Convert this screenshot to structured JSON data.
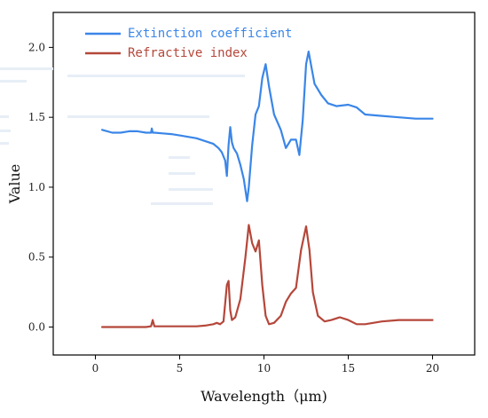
{
  "chart_data": {
    "type": "line",
    "title": "",
    "xlabel": "Wavelength（μm)",
    "ylabel": "Value",
    "xlim": [
      -2.5,
      22.5
    ],
    "ylim": [
      -0.2,
      2.25
    ],
    "xticks": [
      0,
      5,
      10,
      15,
      20
    ],
    "yticks": [
      0.0,
      0.5,
      1.0,
      1.5,
      2.0
    ],
    "xtick_labels": [
      "0",
      "5",
      "10",
      "15",
      "20"
    ],
    "ytick_labels": [
      "0.0",
      "0.5",
      "1.0",
      "1.5",
      "2.0"
    ],
    "grid": false,
    "legend_position": "top-left",
    "series": [
      {
        "name": "Extinction coefficient",
        "color": "#3a86e8",
        "x": [
          0.4,
          1.0,
          1.5,
          2.0,
          2.5,
          3.0,
          3.3,
          3.35,
          3.4,
          3.5,
          4.0,
          4.5,
          5.0,
          5.5,
          6.0,
          6.5,
          7.0,
          7.3,
          7.5,
          7.7,
          7.8,
          7.9,
          8.0,
          8.1,
          8.2,
          8.4,
          8.6,
          8.8,
          9.0,
          9.1,
          9.3,
          9.5,
          9.7,
          9.9,
          10.1,
          10.3,
          10.6,
          11.0,
          11.3,
          11.6,
          11.9,
          12.1,
          12.3,
          12.5,
          12.65,
          12.8,
          13.0,
          13.4,
          13.8,
          14.3,
          15.0,
          15.5,
          16.0,
          17.0,
          18.0,
          19.0,
          20.0
        ],
        "values": [
          1.41,
          1.39,
          1.39,
          1.4,
          1.4,
          1.39,
          1.39,
          1.42,
          1.39,
          1.39,
          1.385,
          1.38,
          1.37,
          1.36,
          1.35,
          1.33,
          1.31,
          1.28,
          1.25,
          1.19,
          1.08,
          1.3,
          1.43,
          1.32,
          1.28,
          1.24,
          1.16,
          1.06,
          0.9,
          1.0,
          1.3,
          1.52,
          1.58,
          1.78,
          1.88,
          1.72,
          1.52,
          1.41,
          1.28,
          1.34,
          1.34,
          1.23,
          1.48,
          1.88,
          1.97,
          1.87,
          1.74,
          1.66,
          1.6,
          1.58,
          1.59,
          1.57,
          1.52,
          1.51,
          1.5,
          1.49,
          1.49
        ]
      },
      {
        "name": "Refractive index",
        "color": "#b5473a",
        "x": [
          0.4,
          1.0,
          2.0,
          3.0,
          3.3,
          3.4,
          3.5,
          4.0,
          5.0,
          6.0,
          6.5,
          7.0,
          7.2,
          7.4,
          7.6,
          7.8,
          7.9,
          8.0,
          8.1,
          8.3,
          8.6,
          8.9,
          9.1,
          9.3,
          9.5,
          9.7,
          9.9,
          10.1,
          10.3,
          10.6,
          11.0,
          11.3,
          11.6,
          11.9,
          12.2,
          12.5,
          12.7,
          12.9,
          13.2,
          13.6,
          14.0,
          14.5,
          15.0,
          15.5,
          16.0,
          17.0,
          18.0,
          19.0,
          20.0
        ],
        "values": [
          0.0,
          0.0,
          0.0,
          0.0,
          0.005,
          0.05,
          0.005,
          0.005,
          0.005,
          0.005,
          0.01,
          0.02,
          0.03,
          0.02,
          0.04,
          0.3,
          0.33,
          0.12,
          0.05,
          0.07,
          0.2,
          0.5,
          0.73,
          0.6,
          0.54,
          0.62,
          0.3,
          0.08,
          0.02,
          0.03,
          0.08,
          0.18,
          0.24,
          0.28,
          0.55,
          0.72,
          0.55,
          0.25,
          0.08,
          0.04,
          0.05,
          0.07,
          0.05,
          0.02,
          0.02,
          0.04,
          0.05,
          0.05,
          0.05
        ]
      }
    ]
  },
  "legend": {
    "items": [
      {
        "label": "Extinction coefficient",
        "color": "#3a86e8"
      },
      {
        "label": "Refractive index",
        "color": "#b5473a"
      }
    ]
  }
}
